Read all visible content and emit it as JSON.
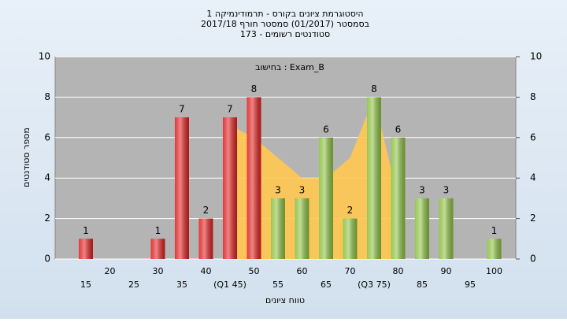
{
  "chart_data": {
    "type": "bar",
    "title": [
      "היסטוגרמת ציונים בקורס - תרמודינמיקה 1",
      "בסמסטר  (01/2017)  סמסטר חורף 2017/18",
      "סטודנטים רשומים - 173"
    ],
    "annotation": "בחישוב : Exam_B",
    "x_label": "טווח ציונים",
    "y_label": "מספר סטודנטים",
    "categories": [
      "15",
      "20",
      "25",
      "30",
      "35",
      "40",
      "(Q1 45)",
      "50",
      "55",
      "60",
      "65",
      "70",
      "(Q3 75)",
      "80",
      "85",
      "90",
      "95",
      "100"
    ],
    "values": [
      1,
      0,
      0,
      1,
      7,
      2,
      7,
      8,
      3,
      3,
      6,
      2,
      8,
      6,
      3,
      3,
      0,
      1
    ],
    "colors": [
      "#e02020",
      "#e02020",
      "#e02020",
      "#e02020",
      "#e02020",
      "#e02020",
      "#e02020",
      "#e02020",
      "#8cc040",
      "#8cc040",
      "#8cc040",
      "#8cc040",
      "#8cc040",
      "#8cc040",
      "#8cc040",
      "#8cc040",
      "#8cc040",
      "#8cc040"
    ],
    "area": {
      "color": "#ffc850",
      "values": [
        null,
        null,
        null,
        null,
        null,
        null,
        6.6,
        6,
        5,
        4,
        4,
        5,
        8,
        3,
        null,
        null,
        null,
        null
      ]
    },
    "ylim": [
      0,
      10
    ],
    "yticks": [
      0,
      2,
      4,
      6,
      8,
      10
    ],
    "y2lim": [
      0,
      10
    ],
    "y2ticks": [
      0,
      2,
      4,
      6,
      8,
      10
    ],
    "grid": true
  }
}
